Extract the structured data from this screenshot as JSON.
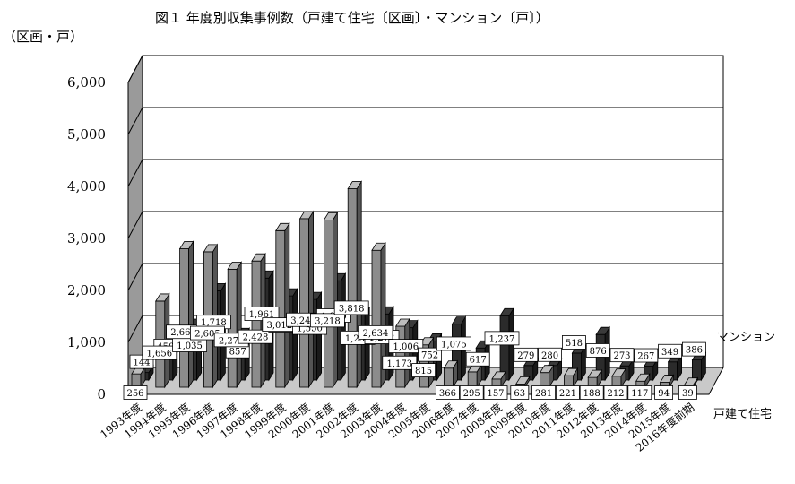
{
  "chart_data": {
    "type": "bar",
    "title": "図１ 年度別収集事例数（戸建て住宅〔区画〕・マンション〔戸〕）",
    "ylabel": "（区画・戸）",
    "ylim": [
      0,
      6000
    ],
    "yticks": [
      "0",
      "1,000",
      "2,000",
      "3,000",
      "4,000",
      "5,000",
      "6,000"
    ],
    "grid": true,
    "categories": [
      "1993年度",
      "1994年度",
      "1995年度",
      "1996年度",
      "1997年度",
      "1998年度",
      "1999年度",
      "2000年度",
      "2001年度",
      "2002年度",
      "2003年度",
      "2004年度",
      "2005年度",
      "2006年度",
      "2007年度",
      "2008年度",
      "2009年度",
      "2010年度",
      "2011年度",
      "2012年度",
      "2013年度",
      "2014年度",
      "2015年度",
      "2016年度前期"
    ],
    "series": [
      {
        "name": "マンション",
        "color": "#2b2b2b",
        "values": [
          144,
          450,
          1035,
          1718,
          857,
          1961,
          1619,
          1550,
          1910,
          1250,
          1272,
          1006,
          752,
          1075,
          617,
          1237,
          279,
          280,
          518,
          876,
          273,
          267,
          349,
          386
        ],
        "labels": [
          "144",
          "450",
          "1,035",
          "1,718",
          "857",
          "1,961",
          "1,619",
          "1,550",
          "1,910",
          "1,250",
          "1,272",
          "1,006",
          "752",
          "1,075",
          "617",
          "1,237",
          "279",
          "280",
          "518",
          "876",
          "273",
          "267",
          "349",
          "386"
        ]
      },
      {
        "name": "戸建て住宅",
        "color": "#8c8c8c",
        "values": [
          256,
          1656,
          2663,
          2605,
          2270,
          2428,
          3012,
          3243,
          3218,
          3818,
          2634,
          1173,
          815,
          366,
          295,
          157,
          63,
          281,
          221,
          188,
          212,
          117,
          94,
          39
        ],
        "labels": [
          "256",
          "1,656",
          "2,663",
          "2,605",
          "2,270",
          "2,428",
          "3,012",
          "3,243",
          "3,218",
          "3,818",
          "2,634",
          "1,173",
          "815",
          "366",
          "295",
          "157",
          "63",
          "281",
          "221",
          "188",
          "212",
          "117",
          "94",
          "39"
        ]
      }
    ]
  }
}
